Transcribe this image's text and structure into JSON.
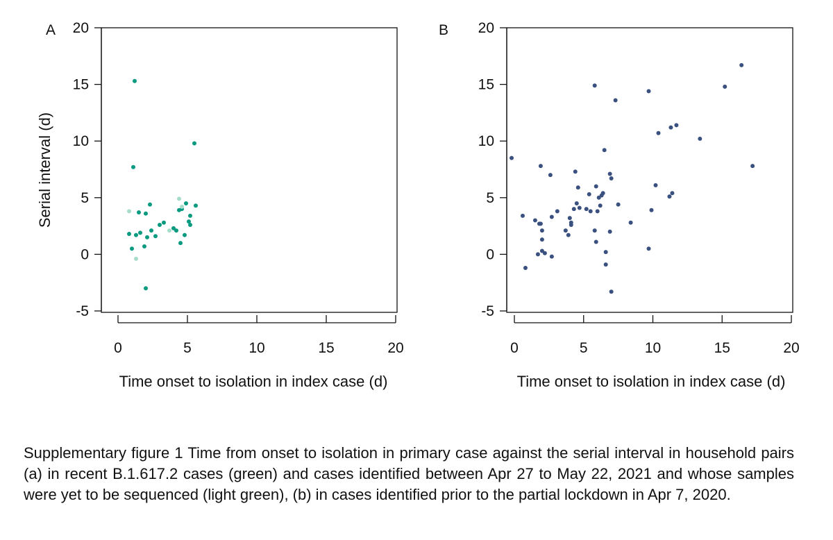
{
  "caption": "Supplementary figure 1 Time from onset to isolation in primary case against the serial interval in household pairs (a) in recent B.1.617.2 cases (green) and cases identified between Apr 27 to May 22, 2021 and whose samples were yet to be sequenced (light green), (b) in cases identified prior to the partial lockdown in Apr 7, 2020.",
  "colors": {
    "green": "#0a9a80",
    "light_green": "#a6dcc9",
    "blue": "#3a507f",
    "axis": "#111111"
  },
  "chart_data": [
    {
      "type": "scatter",
      "panel_label": "A",
      "title": "",
      "xlabel": "Time onset to isolation in index case (d)",
      "ylabel": "Serial interval (d)",
      "xlim": [
        0,
        20
      ],
      "ylim": [
        -5,
        20
      ],
      "xticks": [
        0,
        5,
        10,
        15,
        20
      ],
      "yticks": [
        -5,
        0,
        5,
        10,
        15,
        20
      ],
      "grid": false,
      "series": [
        {
          "color": "#0a9a80",
          "points": [
            [
              1.2,
              15.3
            ],
            [
              1.1,
              7.7
            ],
            [
              5.5,
              9.8
            ],
            [
              2.0,
              -3.0
            ],
            [
              0.8,
              1.8
            ],
            [
              1.0,
              0.5
            ],
            [
              1.3,
              1.7
            ],
            [
              1.5,
              3.7
            ],
            [
              1.6,
              1.9
            ],
            [
              1.9,
              0.7
            ],
            [
              2.0,
              3.6
            ],
            [
              2.1,
              1.5
            ],
            [
              2.3,
              4.4
            ],
            [
              2.4,
              2.1
            ],
            [
              2.7,
              1.6
            ],
            [
              3.0,
              2.6
            ],
            [
              3.3,
              2.8
            ],
            [
              4.0,
              2.3
            ],
            [
              4.2,
              2.1
            ],
            [
              4.4,
              3.9
            ],
            [
              4.5,
              1.0
            ],
            [
              4.6,
              4.0
            ],
            [
              4.8,
              1.7
            ],
            [
              4.9,
              4.5
            ],
            [
              5.1,
              2.9
            ],
            [
              5.2,
              3.4
            ],
            [
              5.2,
              2.6
            ],
            [
              5.6,
              4.3
            ]
          ]
        },
        {
          "color": "#a6dcc9",
          "points": [
            [
              0.8,
              3.8
            ],
            [
              1.3,
              -0.4
            ],
            [
              3.7,
              2.1
            ],
            [
              4.4,
              4.9
            ],
            [
              4.6,
              4.2
            ]
          ]
        }
      ]
    },
    {
      "type": "scatter",
      "panel_label": "B",
      "title": "",
      "xlabel": "Time onset to isolation in index case (d)",
      "ylabel": "",
      "xlim": [
        0,
        20
      ],
      "ylim": [
        -5,
        20
      ],
      "xticks": [
        0,
        5,
        10,
        15,
        20
      ],
      "yticks": [
        -5,
        0,
        5,
        10,
        15,
        20
      ],
      "grid": false,
      "series": [
        {
          "color": "#3a507f",
          "points": [
            [
              -0.2,
              8.5
            ],
            [
              0.6,
              3.4
            ],
            [
              0.8,
              -1.2
            ],
            [
              1.5,
              3.0
            ],
            [
              1.7,
              0.0
            ],
            [
              1.8,
              2.7
            ],
            [
              1.9,
              2.7
            ],
            [
              1.9,
              7.8
            ],
            [
              2.0,
              2.1
            ],
            [
              2.0,
              1.3
            ],
            [
              2.0,
              0.3
            ],
            [
              2.2,
              0.1
            ],
            [
              2.6,
              7.0
            ],
            [
              2.7,
              -0.2
            ],
            [
              2.7,
              3.3
            ],
            [
              3.1,
              3.8
            ],
            [
              3.7,
              2.1
            ],
            [
              3.9,
              1.7
            ],
            [
              4.0,
              3.2
            ],
            [
              4.1,
              2.8
            ],
            [
              4.1,
              2.6
            ],
            [
              4.3,
              4.0
            ],
            [
              4.4,
              7.3
            ],
            [
              4.6,
              5.9
            ],
            [
              4.5,
              4.5
            ],
            [
              4.7,
              4.1
            ],
            [
              5.2,
              4.0
            ],
            [
              5.4,
              5.3
            ],
            [
              5.5,
              3.8
            ],
            [
              5.8,
              14.9
            ],
            [
              5.8,
              2.1
            ],
            [
              5.9,
              6.0
            ],
            [
              5.9,
              1.1
            ],
            [
              6.0,
              3.8
            ],
            [
              6.1,
              5.0
            ],
            [
              6.2,
              4.3
            ],
            [
              6.3,
              5.2
            ],
            [
              6.4,
              5.4
            ],
            [
              6.5,
              9.2
            ],
            [
              6.6,
              0.2
            ],
            [
              6.6,
              -0.9
            ],
            [
              6.9,
              2.0
            ],
            [
              6.9,
              7.1
            ],
            [
              7.0,
              6.7
            ],
            [
              7.0,
              -3.3
            ],
            [
              7.3,
              13.6
            ],
            [
              7.5,
              4.4
            ],
            [
              8.4,
              2.8
            ],
            [
              9.7,
              14.4
            ],
            [
              9.7,
              0.5
            ],
            [
              9.9,
              3.9
            ],
            [
              10.2,
              6.1
            ],
            [
              10.4,
              10.7
            ],
            [
              11.2,
              5.1
            ],
            [
              11.3,
              11.2
            ],
            [
              11.4,
              5.4
            ],
            [
              11.7,
              11.4
            ],
            [
              13.4,
              10.2
            ],
            [
              15.2,
              14.8
            ],
            [
              16.4,
              16.7
            ],
            [
              17.2,
              7.8
            ]
          ]
        }
      ]
    }
  ]
}
